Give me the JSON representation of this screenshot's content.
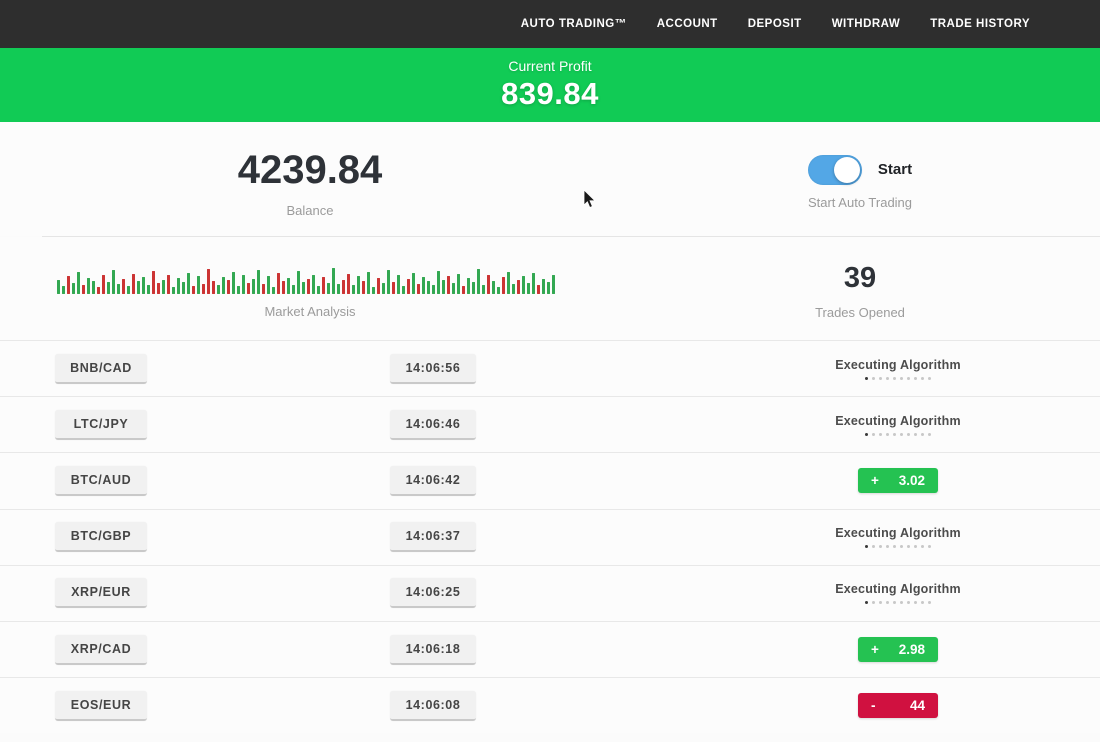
{
  "nav": {
    "items": [
      {
        "label": "AUTO TRADING™"
      },
      {
        "label": "ACCOUNT"
      },
      {
        "label": "DEPOSIT"
      },
      {
        "label": "WITHDRAW"
      },
      {
        "label": "TRADE HISTORY"
      }
    ]
  },
  "profit_banner": {
    "label": "Current Profit",
    "value": "839.84",
    "bg_color": "#11cb55"
  },
  "account": {
    "balance": "4239.84",
    "balance_label": "Balance",
    "toggle_label": "Start",
    "toggle_caption": "Start Auto Trading",
    "toggle_state": "on",
    "toggle_color": "#53a7e6"
  },
  "market": {
    "chart_label": "Market Analysis",
    "trades_opened": "39",
    "trades_opened_label": "Trades Opened"
  },
  "executing_dots": {
    "count": 10,
    "active_index": 0
  },
  "status_colors": {
    "profit": "#25c252",
    "loss": "#d01140"
  },
  "trades": [
    {
      "pair": "BNB/CAD",
      "time": "14:06:56",
      "status": "executing",
      "status_label": "Executing Algorithm"
    },
    {
      "pair": "LTC/JPY",
      "time": "14:06:46",
      "status": "executing",
      "status_label": "Executing Algorithm"
    },
    {
      "pair": "BTC/AUD",
      "time": "14:06:42",
      "status": "profit",
      "result_sign": "+",
      "result_value": "3.02"
    },
    {
      "pair": "BTC/GBP",
      "time": "14:06:37",
      "status": "executing",
      "status_label": "Executing Algorithm"
    },
    {
      "pair": "XRP/EUR",
      "time": "14:06:25",
      "status": "executing",
      "status_label": "Executing Algorithm"
    },
    {
      "pair": "XRP/CAD",
      "time": "14:06:18",
      "status": "profit",
      "result_sign": "+",
      "result_value": "2.98"
    },
    {
      "pair": "EOS/EUR",
      "time": "14:06:08",
      "status": "loss",
      "result_sign": "-",
      "result_value": "44"
    }
  ],
  "chart_data": {
    "type": "bar",
    "title": "Market Analysis",
    "description": "Decorative mini bar strip of green/red market ticks, baseline at bottom, no axes",
    "ylim": [
      0,
      30
    ],
    "bar_colors": {
      "g": "#33a852",
      "r": "#cc3434"
    },
    "heights": [
      14,
      8,
      18,
      11,
      22,
      9,
      16,
      13,
      7,
      19,
      12,
      24,
      10,
      15,
      8,
      20,
      13,
      17,
      9,
      23,
      11,
      14,
      19,
      7,
      16,
      12,
      21,
      8,
      18,
      10,
      25,
      13,
      9,
      17,
      14,
      22,
      8,
      19,
      11,
      15,
      24,
      10,
      18,
      7,
      21,
      13,
      16,
      9,
      23,
      12,
      15,
      19,
      8,
      17,
      11,
      26,
      10,
      14,
      20,
      9,
      18,
      13,
      22,
      7,
      16,
      11,
      24,
      12,
      19,
      8,
      15,
      21,
      10,
      17,
      13,
      9,
      23,
      14,
      18,
      11,
      20,
      8,
      16,
      12,
      25,
      9,
      19,
      13,
      7,
      17,
      22,
      10,
      14,
      18,
      11,
      21,
      9,
      15,
      12,
      19
    ],
    "colors": "ggrggrggrrgggrgrgggrrgrggggrgrrrggrgggrggrggrrggggrggrgggrrggrggrggrggrgrgggggrggrggggrggrggrgggrggg"
  }
}
